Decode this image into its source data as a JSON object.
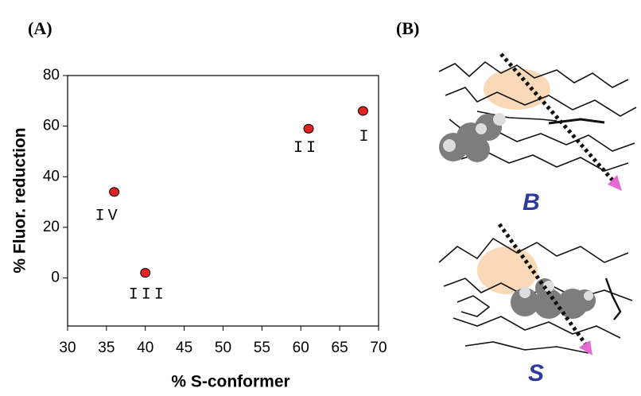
{
  "chart_data": {
    "type": "scatter",
    "x_label": "% S-conformer",
    "y_label": "% Fluor. reduction",
    "x": [
      36,
      40,
      61,
      68
    ],
    "values": [
      34,
      2,
      59,
      66
    ],
    "point_labels": [
      "IV",
      "III",
      "II",
      "I"
    ],
    "color": "#e32222",
    "xlim": [
      30,
      70
    ],
    "xticks": [
      30,
      35,
      40,
      45,
      50,
      55,
      60,
      65,
      70
    ],
    "ylim": [
      -19,
      80
    ],
    "yticks": [
      0,
      20,
      40,
      60,
      80
    ],
    "grid": false
  },
  "panel_labels": [
    "(A)",
    "(B)"
  ],
  "structure_labels": [
    "B",
    "S"
  ]
}
